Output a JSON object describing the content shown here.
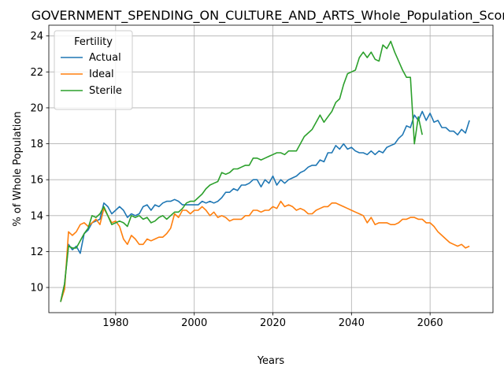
{
  "chart_data": {
    "type": "line",
    "title": "GOVERNMENT_SPENDING_ON_CULTURE_AND_ARTS_Whole_Population_Scori",
    "xlabel": "Years",
    "ylabel": "% of Whole Population",
    "xlim": [
      1963,
      2076
    ],
    "ylim": [
      8.6,
      24.6
    ],
    "xticks": [
      1980,
      2000,
      2020,
      2040,
      2060
    ],
    "yticks": [
      10,
      12,
      14,
      16,
      18,
      20,
      22,
      24
    ],
    "grid": true,
    "legend": {
      "title": "Fertility",
      "placement": "upper-left"
    },
    "series": [
      {
        "name": "Actual",
        "color": "#1f77b4",
        "points": [
          [
            1966,
            9.2
          ],
          [
            1967,
            10.2
          ],
          [
            1968,
            12.4
          ],
          [
            1969,
            12.1
          ],
          [
            1970,
            12.3
          ],
          [
            1971,
            11.9
          ],
          [
            1972,
            13.0
          ],
          [
            1973,
            13.2
          ],
          [
            1974,
            13.6
          ],
          [
            1975,
            13.7
          ],
          [
            1976,
            13.8
          ],
          [
            1977,
            14.7
          ],
          [
            1978,
            14.5
          ],
          [
            1979,
            14.1
          ],
          [
            1980,
            14.3
          ],
          [
            1981,
            14.5
          ],
          [
            1982,
            14.3
          ],
          [
            1983,
            13.9
          ],
          [
            1984,
            14.1
          ],
          [
            1985,
            14.0
          ],
          [
            1986,
            14.1
          ],
          [
            1987,
            14.5
          ],
          [
            1988,
            14.6
          ],
          [
            1989,
            14.3
          ],
          [
            1990,
            14.6
          ],
          [
            1991,
            14.5
          ],
          [
            1992,
            14.7
          ],
          [
            1993,
            14.8
          ],
          [
            1994,
            14.8
          ],
          [
            1995,
            14.9
          ],
          [
            1996,
            14.8
          ],
          [
            1997,
            14.6
          ],
          [
            1998,
            14.6
          ],
          [
            1999,
            14.6
          ],
          [
            2000,
            14.6
          ],
          [
            2001,
            14.6
          ],
          [
            2002,
            14.8
          ],
          [
            2003,
            14.7
          ],
          [
            2004,
            14.8
          ],
          [
            2005,
            14.7
          ],
          [
            2006,
            14.8
          ],
          [
            2007,
            15.0
          ],
          [
            2008,
            15.3
          ],
          [
            2009,
            15.3
          ],
          [
            2010,
            15.5
          ],
          [
            2011,
            15.4
          ],
          [
            2012,
            15.7
          ],
          [
            2013,
            15.7
          ],
          [
            2014,
            15.8
          ],
          [
            2015,
            16.0
          ],
          [
            2016,
            16.0
          ],
          [
            2017,
            15.6
          ],
          [
            2018,
            16.0
          ],
          [
            2019,
            15.8
          ],
          [
            2020,
            16.2
          ],
          [
            2021,
            15.7
          ],
          [
            2022,
            16.0
          ],
          [
            2023,
            15.8
          ],
          [
            2024,
            16.0
          ],
          [
            2025,
            16.1
          ],
          [
            2026,
            16.2
          ],
          [
            2027,
            16.4
          ],
          [
            2028,
            16.5
          ],
          [
            2029,
            16.7
          ],
          [
            2030,
            16.8
          ],
          [
            2031,
            16.8
          ],
          [
            2032,
            17.1
          ],
          [
            2033,
            17.0
          ],
          [
            2034,
            17.5
          ],
          [
            2035,
            17.5
          ],
          [
            2036,
            17.9
          ],
          [
            2037,
            17.7
          ],
          [
            2038,
            18.0
          ],
          [
            2039,
            17.7
          ],
          [
            2040,
            17.8
          ],
          [
            2041,
            17.6
          ],
          [
            2042,
            17.5
          ],
          [
            2043,
            17.5
          ],
          [
            2044,
            17.4
          ],
          [
            2045,
            17.6
          ],
          [
            2046,
            17.4
          ],
          [
            2047,
            17.6
          ],
          [
            2048,
            17.5
          ],
          [
            2049,
            17.8
          ],
          [
            2050,
            17.9
          ],
          [
            2051,
            18.0
          ],
          [
            2052,
            18.3
          ],
          [
            2053,
            18.5
          ],
          [
            2054,
            19.0
          ],
          [
            2055,
            18.9
          ],
          [
            2056,
            19.6
          ],
          [
            2057,
            19.3
          ],
          [
            2058,
            19.8
          ],
          [
            2059,
            19.3
          ],
          [
            2060,
            19.7
          ],
          [
            2061,
            19.2
          ],
          [
            2062,
            19.3
          ],
          [
            2063,
            18.9
          ],
          [
            2064,
            18.9
          ],
          [
            2065,
            18.7
          ],
          [
            2066,
            18.7
          ],
          [
            2067,
            18.5
          ],
          [
            2068,
            18.8
          ],
          [
            2069,
            18.6
          ],
          [
            2070,
            19.3
          ]
        ]
      },
      {
        "name": "Ideal",
        "color": "#ff7f0e",
        "points": [
          [
            1966,
            9.2
          ],
          [
            1967,
            9.9
          ],
          [
            1968,
            13.1
          ],
          [
            1969,
            12.9
          ],
          [
            1970,
            13.1
          ],
          [
            1971,
            13.5
          ],
          [
            1972,
            13.6
          ],
          [
            1973,
            13.4
          ],
          [
            1974,
            13.6
          ],
          [
            1975,
            13.8
          ],
          [
            1976,
            13.5
          ],
          [
            1977,
            14.4
          ],
          [
            1978,
            14.0
          ],
          [
            1979,
            13.6
          ],
          [
            1980,
            13.7
          ],
          [
            1981,
            13.4
          ],
          [
            1982,
            12.7
          ],
          [
            1983,
            12.4
          ],
          [
            1984,
            12.9
          ],
          [
            1985,
            12.7
          ],
          [
            1986,
            12.4
          ],
          [
            1987,
            12.4
          ],
          [
            1988,
            12.7
          ],
          [
            1989,
            12.6
          ],
          [
            1990,
            12.7
          ],
          [
            1991,
            12.8
          ],
          [
            1992,
            12.8
          ],
          [
            1993,
            13.0
          ],
          [
            1994,
            13.3
          ],
          [
            1995,
            14.1
          ],
          [
            1996,
            13.9
          ],
          [
            1997,
            14.3
          ],
          [
            1998,
            14.3
          ],
          [
            1999,
            14.1
          ],
          [
            2000,
            14.3
          ],
          [
            2001,
            14.3
          ],
          [
            2002,
            14.5
          ],
          [
            2003,
            14.3
          ],
          [
            2004,
            14.0
          ],
          [
            2005,
            14.2
          ],
          [
            2006,
            13.9
          ],
          [
            2007,
            14.0
          ],
          [
            2008,
            13.9
          ],
          [
            2009,
            13.7
          ],
          [
            2010,
            13.8
          ],
          [
            2011,
            13.8
          ],
          [
            2012,
            13.8
          ],
          [
            2013,
            14.0
          ],
          [
            2014,
            14.0
          ],
          [
            2015,
            14.3
          ],
          [
            2016,
            14.3
          ],
          [
            2017,
            14.2
          ],
          [
            2018,
            14.3
          ],
          [
            2019,
            14.3
          ],
          [
            2020,
            14.5
          ],
          [
            2021,
            14.4
          ],
          [
            2022,
            14.8
          ],
          [
            2023,
            14.5
          ],
          [
            2024,
            14.6
          ],
          [
            2025,
            14.5
          ],
          [
            2026,
            14.3
          ],
          [
            2027,
            14.4
          ],
          [
            2028,
            14.3
          ],
          [
            2029,
            14.1
          ],
          [
            2030,
            14.1
          ],
          [
            2031,
            14.3
          ],
          [
            2032,
            14.4
          ],
          [
            2033,
            14.5
          ],
          [
            2034,
            14.5
          ],
          [
            2035,
            14.7
          ],
          [
            2036,
            14.7
          ],
          [
            2037,
            14.6
          ],
          [
            2038,
            14.5
          ],
          [
            2039,
            14.4
          ],
          [
            2040,
            14.3
          ],
          [
            2041,
            14.2
          ],
          [
            2042,
            14.1
          ],
          [
            2043,
            14.0
          ],
          [
            2044,
            13.6
          ],
          [
            2045,
            13.9
          ],
          [
            2046,
            13.5
          ],
          [
            2047,
            13.6
          ],
          [
            2048,
            13.6
          ],
          [
            2049,
            13.6
          ],
          [
            2050,
            13.5
          ],
          [
            2051,
            13.5
          ],
          [
            2052,
            13.6
          ],
          [
            2053,
            13.8
          ],
          [
            2054,
            13.8
          ],
          [
            2055,
            13.9
          ],
          [
            2056,
            13.9
          ],
          [
            2057,
            13.8
          ],
          [
            2058,
            13.8
          ],
          [
            2059,
            13.6
          ],
          [
            2060,
            13.6
          ],
          [
            2061,
            13.4
          ],
          [
            2062,
            13.1
          ],
          [
            2063,
            12.9
          ],
          [
            2064,
            12.7
          ],
          [
            2065,
            12.5
          ],
          [
            2066,
            12.4
          ],
          [
            2067,
            12.3
          ],
          [
            2068,
            12.4
          ],
          [
            2069,
            12.2
          ],
          [
            2070,
            12.3
          ]
        ]
      },
      {
        "name": "Sterile",
        "color": "#2ca02c",
        "points": [
          [
            1966,
            9.2
          ],
          [
            1967,
            10.2
          ],
          [
            1968,
            12.3
          ],
          [
            1969,
            12.2
          ],
          [
            1970,
            12.2
          ],
          [
            1971,
            12.6
          ],
          [
            1972,
            13.0
          ],
          [
            1973,
            13.3
          ],
          [
            1974,
            14.0
          ],
          [
            1975,
            13.9
          ],
          [
            1976,
            14.1
          ],
          [
            1977,
            14.5
          ],
          [
            1978,
            14.0
          ],
          [
            1979,
            13.5
          ],
          [
            1980,
            13.6
          ],
          [
            1981,
            13.7
          ],
          [
            1982,
            13.6
          ],
          [
            1983,
            13.4
          ],
          [
            1984,
            14.0
          ],
          [
            1985,
            13.9
          ],
          [
            1986,
            14.0
          ],
          [
            1987,
            13.8
          ],
          [
            1988,
            13.9
          ],
          [
            1989,
            13.6
          ],
          [
            1990,
            13.7
          ],
          [
            1991,
            13.9
          ],
          [
            1992,
            14.0
          ],
          [
            1993,
            13.8
          ],
          [
            1994,
            14.0
          ],
          [
            1995,
            14.2
          ],
          [
            1996,
            14.2
          ],
          [
            1997,
            14.4
          ],
          [
            1998,
            14.7
          ],
          [
            1999,
            14.8
          ],
          [
            2000,
            14.8
          ],
          [
            2001,
            15.0
          ],
          [
            2002,
            15.2
          ],
          [
            2003,
            15.5
          ],
          [
            2004,
            15.7
          ],
          [
            2005,
            15.8
          ],
          [
            2006,
            15.9
          ],
          [
            2007,
            16.4
          ],
          [
            2008,
            16.3
          ],
          [
            2009,
            16.4
          ],
          [
            2010,
            16.6
          ],
          [
            2011,
            16.6
          ],
          [
            2012,
            16.7
          ],
          [
            2013,
            16.8
          ],
          [
            2014,
            16.8
          ],
          [
            2015,
            17.2
          ],
          [
            2016,
            17.2
          ],
          [
            2017,
            17.1
          ],
          [
            2018,
            17.2
          ],
          [
            2019,
            17.3
          ],
          [
            2020,
            17.4
          ],
          [
            2021,
            17.5
          ],
          [
            2022,
            17.5
          ],
          [
            2023,
            17.4
          ],
          [
            2024,
            17.6
          ],
          [
            2025,
            17.6
          ],
          [
            2026,
            17.6
          ],
          [
            2027,
            18.0
          ],
          [
            2028,
            18.4
          ],
          [
            2029,
            18.6
          ],
          [
            2030,
            18.8
          ],
          [
            2031,
            19.2
          ],
          [
            2032,
            19.6
          ],
          [
            2033,
            19.2
          ],
          [
            2034,
            19.5
          ],
          [
            2035,
            19.8
          ],
          [
            2036,
            20.3
          ],
          [
            2037,
            20.5
          ],
          [
            2038,
            21.3
          ],
          [
            2039,
            21.9
          ],
          [
            2040,
            22.0
          ],
          [
            2041,
            22.1
          ],
          [
            2042,
            22.8
          ],
          [
            2043,
            23.1
          ],
          [
            2044,
            22.8
          ],
          [
            2045,
            23.1
          ],
          [
            2046,
            22.7
          ],
          [
            2047,
            22.6
          ],
          [
            2048,
            23.5
          ],
          [
            2049,
            23.3
          ],
          [
            2050,
            23.7
          ],
          [
            2051,
            23.1
          ],
          [
            2052,
            22.6
          ],
          [
            2053,
            22.1
          ],
          [
            2054,
            21.7
          ],
          [
            2055,
            21.7
          ],
          [
            2056,
            18.0
          ],
          [
            2057,
            19.5
          ],
          [
            2058,
            18.5
          ]
        ]
      }
    ]
  }
}
